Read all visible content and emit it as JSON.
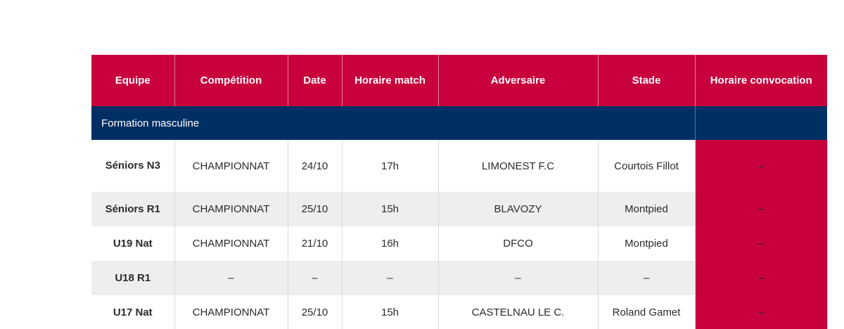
{
  "table": {
    "headers": {
      "team": "Equipe",
      "competition": "Compétition",
      "date": "Date",
      "match_time": "Horaire match",
      "opponent": "Adversaire",
      "stadium": "Stade",
      "convocation_time": "Horaire convocation"
    },
    "section": {
      "label": "Formation masculine"
    },
    "rows": [
      {
        "team": "Séniors N3",
        "competition": "CHAMPIONNAT",
        "date": "24/10",
        "match_time": "17h",
        "opponent": "LIMONEST F.C",
        "stadium": "Courtois Fillot",
        "convocation": "–"
      },
      {
        "team": "Séniors R1",
        "competition": "CHAMPIONNAT",
        "date": "25/10",
        "match_time": "15h",
        "opponent": "BLAVOZY",
        "stadium": "Montpied",
        "convocation": "–"
      },
      {
        "team": "U19 Nat",
        "competition": "CHAMPIONNAT",
        "date": "21/10",
        "match_time": "16h",
        "opponent": "DFCO",
        "stadium": "Montpied",
        "convocation": "–"
      },
      {
        "team": "U18 R1",
        "competition": "–",
        "date": "–",
        "match_time": "–",
        "opponent": "–",
        "stadium": "–",
        "convocation": "–"
      },
      {
        "team": "U17 Nat",
        "competition": "CHAMPIONNAT",
        "date": "25/10",
        "match_time": "15h",
        "opponent": "CASTELNAU LE C.",
        "stadium": "Roland Gamet",
        "convocation": "–"
      }
    ]
  },
  "colors": {
    "header_bg": "#c8003c",
    "section_bg": "#002f64",
    "row_alt_bg": "#eeeeee"
  }
}
